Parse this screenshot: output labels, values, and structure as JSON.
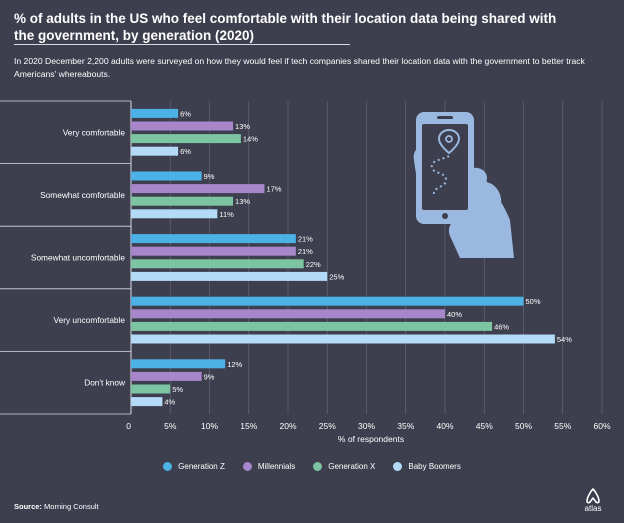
{
  "header": {
    "title": "% of adults in the US who feel comfortable with their location data being shared with the government, by generation (2020)",
    "subtitle": "In 2020 December 2,200 adults were surveyed on how they would feel if tech companies shared their location data with the government to better track Americans' whereabouts."
  },
  "footer": {
    "source_label": "Source:",
    "source_value": "Morning Consult",
    "brand": "atlas"
  },
  "illustration": {
    "icon": "hand-holding-phone-location-icon"
  },
  "colors": {
    "background": "#3d3e4e",
    "Generation Z": "#4cb2e6",
    "Millennials": "#a787c9",
    "Generation X": "#7cc4a2",
    "Baby Boomers": "#b3daf7"
  },
  "chart_data": {
    "type": "bar",
    "orientation": "horizontal",
    "categories": [
      "Very comfortable",
      "Somewhat comfortable",
      "Somewhat uncomfortable",
      "Very uncomfortable",
      "Don't know"
    ],
    "series": [
      {
        "name": "Generation Z",
        "values": [
          6,
          9,
          21,
          50,
          12
        ]
      },
      {
        "name": "Millennials",
        "values": [
          13,
          17,
          21,
          40,
          9
        ]
      },
      {
        "name": "Generation X",
        "values": [
          14,
          13,
          22,
          46,
          5
        ]
      },
      {
        "name": "Baby Boomers",
        "values": [
          6,
          11,
          25,
          54,
          4
        ]
      }
    ],
    "value_suffix": "%",
    "xlabel": "% of respondents",
    "xlim": [
      0,
      60
    ],
    "xticks": [
      "0",
      "5%",
      "10%",
      "15%",
      "20%",
      "25%",
      "30%",
      "35%",
      "40%",
      "45%",
      "50%",
      "55%",
      "60%"
    ],
    "grid": true,
    "legend_position": "bottom"
  }
}
